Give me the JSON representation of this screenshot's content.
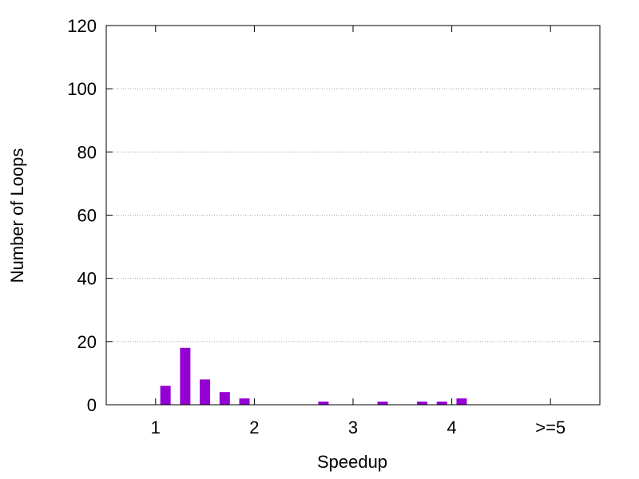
{
  "chart_data": {
    "type": "bar",
    "title": "",
    "xlabel": "Speedup",
    "ylabel": "Number of Loops",
    "xlim": [
      0.5,
      5.5
    ],
    "ylim": [
      0,
      120
    ],
    "x_ticks": [
      {
        "value": 1,
        "label": "1"
      },
      {
        "value": 2,
        "label": "2"
      },
      {
        "value": 3,
        "label": "3"
      },
      {
        "value": 4,
        "label": "4"
      },
      {
        "value": 5,
        "label": ">=5"
      }
    ],
    "y_ticks": [
      0,
      20,
      40,
      60,
      80,
      100,
      120
    ],
    "grid": "horizontal dotted",
    "bar_color": "#9400d3",
    "series": [
      {
        "x": [
          1.1,
          1.3,
          1.5,
          1.7,
          1.9,
          2.7,
          3.3,
          3.7,
          3.9,
          4.1
        ],
        "values": [
          6,
          18,
          8,
          4,
          2,
          1,
          1,
          1,
          1,
          2
        ]
      }
    ]
  }
}
